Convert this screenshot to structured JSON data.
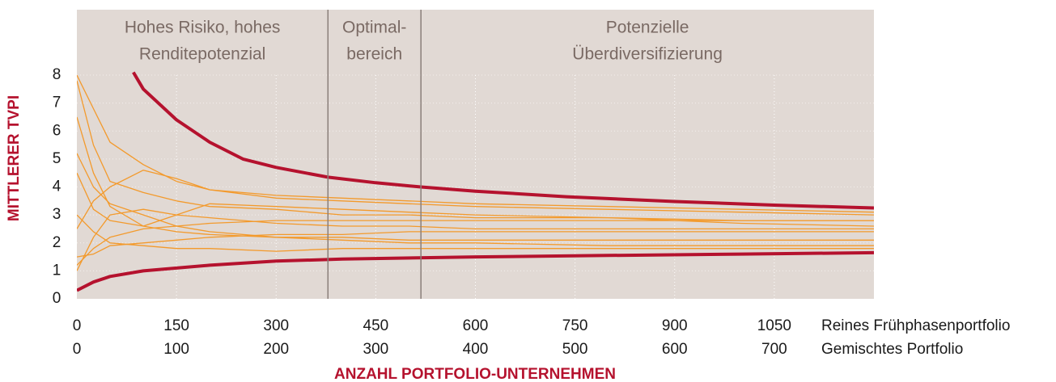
{
  "chart_data": {
    "type": "line",
    "ylabel": "MITTLERER TVPI",
    "xlabel": "ANZAHL PORTFOLIO-UNTERNEHMEN",
    "x_axis_name": "Reines Frühphasenportfolio",
    "x2_axis_name": "Gemischtes Portfolio",
    "xlim": [
      0,
      1200
    ],
    "xticks": [
      0,
      150,
      300,
      450,
      600,
      750,
      900,
      1050
    ],
    "x2lim": [
      0,
      800
    ],
    "x2ticks": [
      0,
      100,
      200,
      300,
      400,
      500,
      600,
      700
    ],
    "ylim": [
      0,
      8
    ],
    "yticks": [
      0,
      1,
      2,
      3,
      4,
      5,
      6,
      7,
      8
    ],
    "grid": true,
    "background": "#e1d9d4",
    "dividers": [
      378,
      518
    ],
    "regions": [
      {
        "lines": [
          "Hohes Risiko, hohes",
          "Renditepotenzial"
        ],
        "start": 0,
        "end": 378
      },
      {
        "lines": [
          "Optimal-",
          "bereich"
        ],
        "start": 378,
        "end": 518
      },
      {
        "lines": [
          "Potenzielle",
          "Überdiversifizierung"
        ],
        "start": 518,
        "end": 1200
      }
    ],
    "series": [
      {
        "color": "#f39a2c",
        "x": [
          0,
          25,
          50,
          100,
          150,
          200,
          300,
          400,
          500,
          600,
          800,
          1000,
          1200
        ],
        "values": [
          7.8,
          5.5,
          4.2,
          3.8,
          3.5,
          3.3,
          3.2,
          3.0,
          3.0,
          2.9,
          2.9,
          2.8,
          2.8
        ]
      },
      {
        "color": "#f39a2c",
        "x": [
          0,
          25,
          50,
          100,
          150,
          200,
          300,
          400,
          500,
          600,
          800,
          1000,
          1200
        ],
        "values": [
          1.2,
          1.8,
          2.2,
          2.5,
          2.6,
          2.7,
          2.8,
          2.8,
          2.8,
          2.8,
          2.8,
          2.8,
          2.8
        ]
      },
      {
        "color": "#f39a2c",
        "x": [
          0,
          25,
          50,
          100,
          150,
          200,
          300,
          400,
          500,
          600,
          800,
          1000,
          1200
        ],
        "values": [
          5.2,
          4.0,
          3.4,
          3.0,
          2.6,
          2.4,
          2.2,
          2.1,
          2.0,
          2.0,
          1.9,
          1.9,
          1.9
        ]
      },
      {
        "color": "#f39a2c",
        "x": [
          0,
          25,
          50,
          100,
          150,
          200,
          300,
          400,
          500,
          600,
          800,
          1000,
          1200
        ],
        "values": [
          2.5,
          3.5,
          4.0,
          4.6,
          4.3,
          3.9,
          3.6,
          3.5,
          3.4,
          3.3,
          3.2,
          3.1,
          3.0
        ]
      },
      {
        "color": "#f39a2c",
        "x": [
          0,
          25,
          50,
          100,
          150,
          200,
          300,
          400,
          500,
          600,
          800,
          1000,
          1200
        ],
        "values": [
          1.5,
          1.6,
          1.9,
          2.0,
          2.1,
          2.2,
          2.3,
          2.3,
          2.4,
          2.4,
          2.4,
          2.4,
          2.4
        ]
      },
      {
        "color": "#f39a2c",
        "x": [
          0,
          25,
          50,
          100,
          150,
          200,
          300,
          400,
          500,
          600,
          800,
          1000,
          1200
        ],
        "values": [
          8.0,
          6.8,
          5.6,
          4.8,
          4.2,
          3.9,
          3.7,
          3.6,
          3.5,
          3.4,
          3.3,
          3.2,
          3.1
        ]
      },
      {
        "color": "#f39a2c",
        "x": [
          0,
          25,
          50,
          100,
          150,
          200,
          300,
          400,
          500,
          600,
          800,
          1000,
          1200
        ],
        "values": [
          3.0,
          2.4,
          2.0,
          1.9,
          1.8,
          1.8,
          1.7,
          1.8,
          1.8,
          1.8,
          1.8,
          1.8,
          1.8
        ]
      },
      {
        "color": "#f39a2c",
        "x": [
          0,
          25,
          50,
          100,
          150,
          200,
          300,
          400,
          500,
          600,
          800,
          1000,
          1200
        ],
        "values": [
          6.5,
          4.5,
          3.3,
          2.6,
          2.4,
          2.3,
          2.2,
          2.2,
          2.1,
          2.1,
          2.1,
          2.1,
          2.1
        ]
      },
      {
        "color": "#f39a2c",
        "x": [
          0,
          25,
          50,
          100,
          150,
          200,
          300,
          400,
          500,
          600,
          800,
          1000,
          1200
        ],
        "values": [
          1.0,
          2.2,
          3.0,
          3.2,
          3.0,
          2.9,
          2.7,
          2.6,
          2.6,
          2.5,
          2.5,
          2.5,
          2.5
        ]
      },
      {
        "color": "#f39a2c",
        "x": [
          0,
          25,
          50,
          100,
          150,
          200,
          300,
          400,
          500,
          600,
          800,
          1000,
          1200
        ],
        "values": [
          4.5,
          3.2,
          2.8,
          2.6,
          3.0,
          3.4,
          3.3,
          3.2,
          3.1,
          3.0,
          2.9,
          2.7,
          2.6
        ]
      },
      {
        "color": "#b5122e",
        "width": 4,
        "x": [
          85,
          100,
          150,
          200,
          250,
          300,
          378,
          450,
          518,
          600,
          737,
          900,
          1050,
          1200
        ],
        "values": [
          8.1,
          7.5,
          6.4,
          5.6,
          5.0,
          4.7,
          4.35,
          4.15,
          4.0,
          3.85,
          3.65,
          3.48,
          3.35,
          3.25
        ]
      },
      {
        "color": "#b5122e",
        "width": 4,
        "x": [
          0,
          25,
          50,
          100,
          200,
          300,
          400,
          600,
          800,
          1000,
          1200
        ],
        "values": [
          0.3,
          0.6,
          0.8,
          1.0,
          1.2,
          1.35,
          1.42,
          1.5,
          1.55,
          1.6,
          1.65
        ]
      }
    ]
  }
}
